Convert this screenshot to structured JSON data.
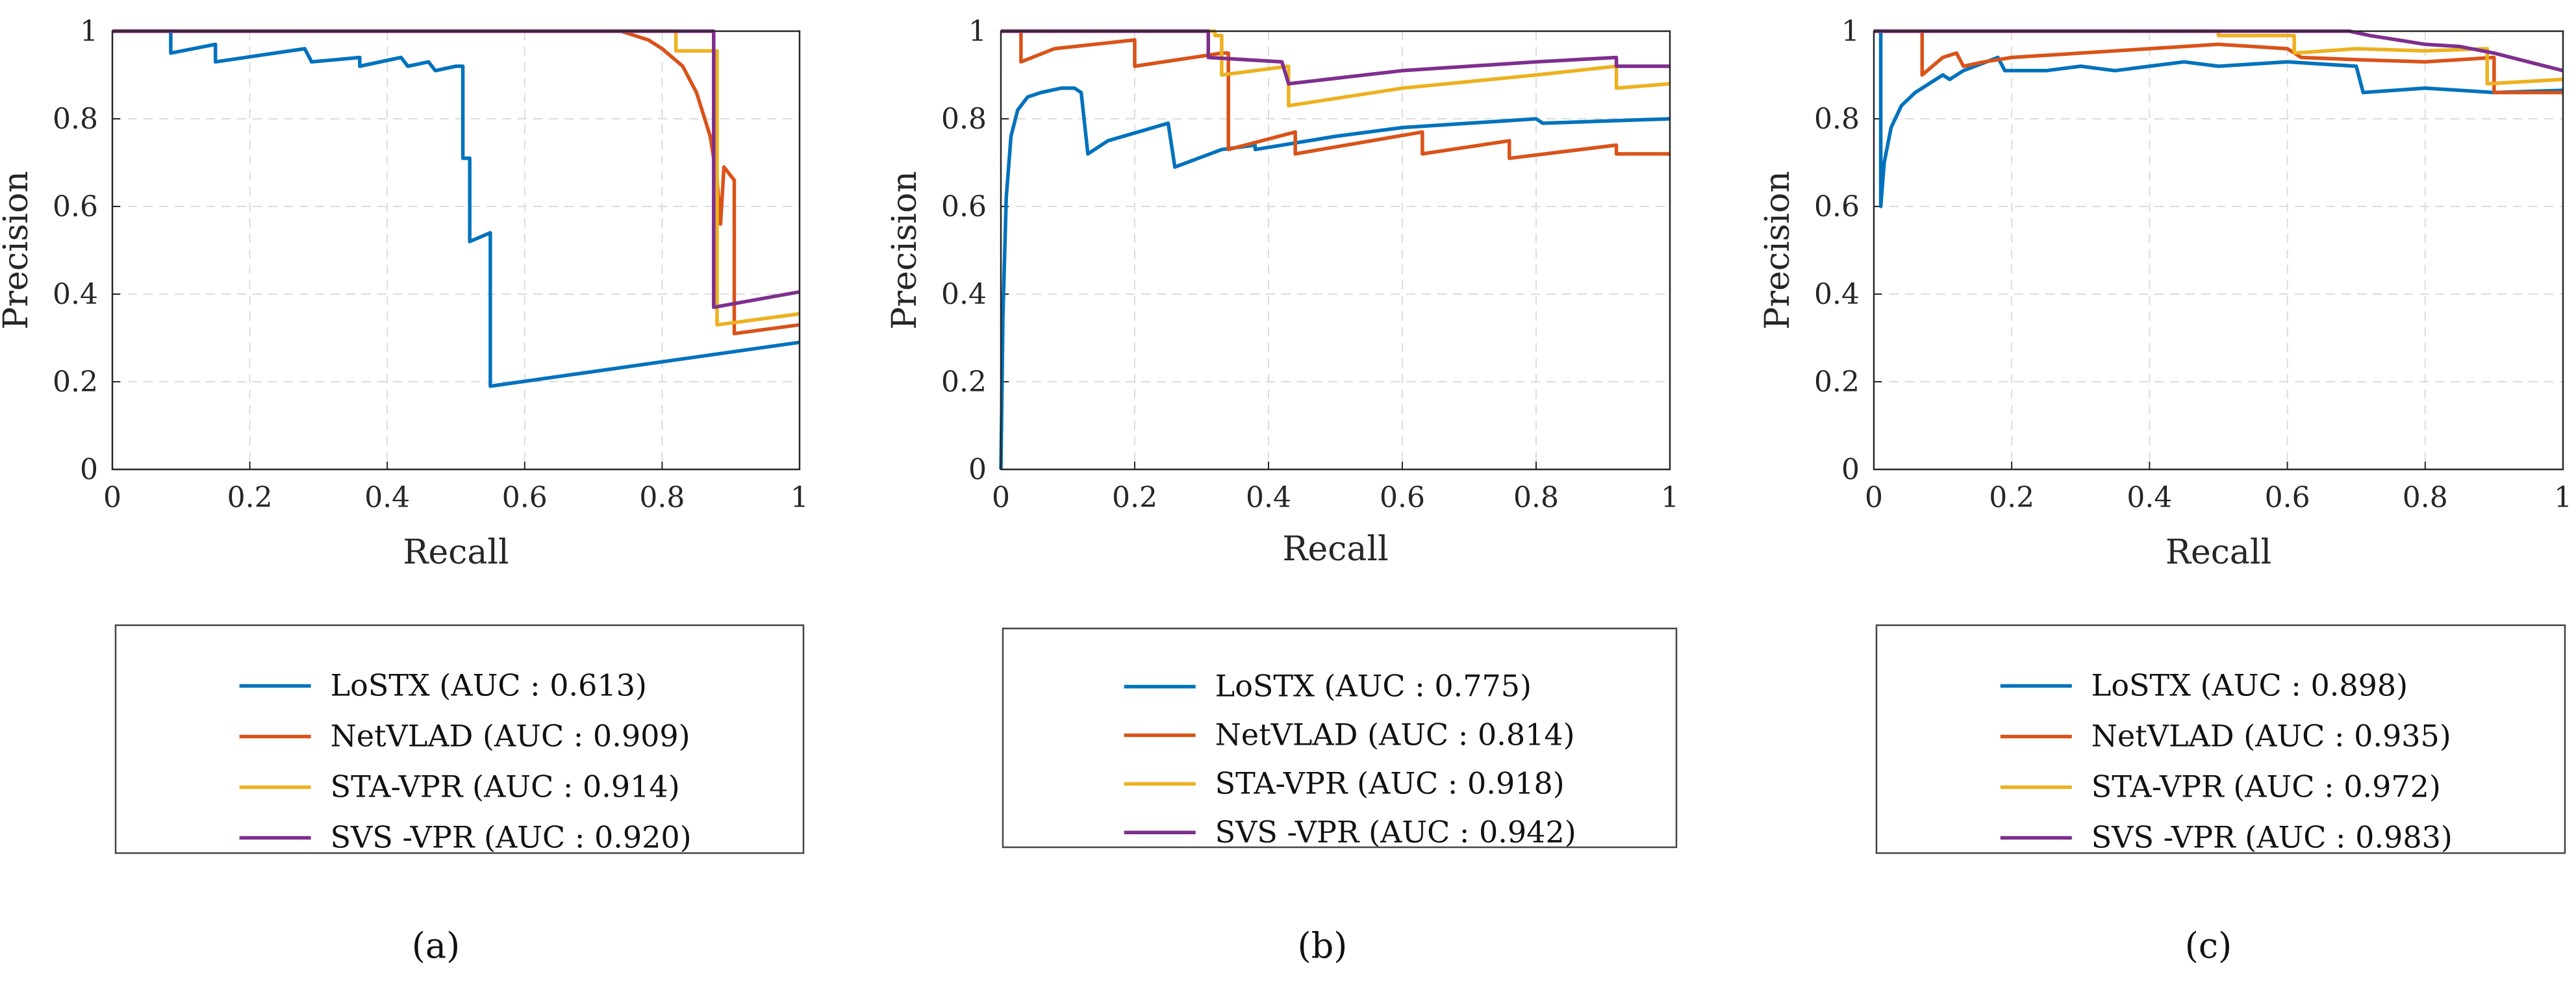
{
  "colors": {
    "LoSTX": "#0072BD",
    "NetVLAD": "#D95319",
    "STA-VPR": "#EDB120",
    "SVS-VPR": "#7E2F8E"
  },
  "chart_data": [
    {
      "type": "line",
      "caption": "(a)",
      "xlabel": "Recall",
      "ylabel": "Precision",
      "xlim": [
        0,
        1
      ],
      "ylim": [
        0,
        1
      ],
      "xticks": [
        "0",
        "0.2",
        "0.4",
        "0.6",
        "0.8",
        "1"
      ],
      "yticks": [
        "0",
        "0.2",
        "0.4",
        "0.6",
        "0.8",
        "1"
      ],
      "grid": true,
      "legend": {
        "placement": "below",
        "entries": [
          "LoSTX (AUC : 0.613)",
          "NetVLAD (AUC : 0.909)",
          "STA-VPR (AUC : 0.914)",
          "SVS -VPR (AUC : 0.920)"
        ]
      },
      "series": [
        {
          "key": "LoSTX",
          "points": [
            [
              0,
              1
            ],
            [
              0.085,
              1
            ],
            [
              0.085,
              0.95
            ],
            [
              0.15,
              0.97
            ],
            [
              0.15,
              0.93
            ],
            [
              0.28,
              0.96
            ],
            [
              0.29,
              0.93
            ],
            [
              0.36,
              0.94
            ],
            [
              0.36,
              0.92
            ],
            [
              0.42,
              0.94
            ],
            [
              0.43,
              0.92
            ],
            [
              0.46,
              0.93
            ],
            [
              0.47,
              0.91
            ],
            [
              0.5,
              0.92
            ],
            [
              0.51,
              0.92
            ],
            [
              0.51,
              0.71
            ],
            [
              0.52,
              0.71
            ],
            [
              0.52,
              0.52
            ],
            [
              0.55,
              0.54
            ],
            [
              0.55,
              0.19
            ],
            [
              1,
              0.29
            ]
          ]
        },
        {
          "key": "NetVLAD",
          "points": [
            [
              0,
              1
            ],
            [
              0.74,
              1
            ],
            [
              0.78,
              0.98
            ],
            [
              0.8,
              0.96
            ],
            [
              0.83,
              0.92
            ],
            [
              0.85,
              0.86
            ],
            [
              0.87,
              0.76
            ],
            [
              0.88,
              0.66
            ],
            [
              0.885,
              0.56
            ],
            [
              0.89,
              0.69
            ],
            [
              0.905,
              0.66
            ],
            [
              0.905,
              0.31
            ],
            [
              1,
              0.33
            ]
          ]
        },
        {
          "key": "STA-VPR",
          "points": [
            [
              0,
              1
            ],
            [
              0.82,
              1
            ],
            [
              0.82,
              0.955
            ],
            [
              0.88,
              0.955
            ],
            [
              0.88,
              0.33
            ],
            [
              1,
              0.355
            ]
          ]
        },
        {
          "key": "SVS-VPR",
          "points": [
            [
              0,
              1
            ],
            [
              0.875,
              1
            ],
            [
              0.875,
              0.37
            ],
            [
              1,
              0.405
            ]
          ]
        }
      ]
    },
    {
      "type": "line",
      "caption": "(b)",
      "xlabel": "Recall",
      "ylabel": "Precision",
      "xlim": [
        0,
        1
      ],
      "ylim": [
        0,
        1
      ],
      "xticks": [
        "0",
        "0.2",
        "0.4",
        "0.6",
        "0.8",
        "1"
      ],
      "yticks": [
        "0",
        "0.2",
        "0.4",
        "0.6",
        "0.8",
        "1"
      ],
      "grid": true,
      "legend": {
        "placement": "below",
        "entries": [
          "LoSTX (AUC : 0.775)",
          "NetVLAD (AUC : 0.814)",
          "STA-VPR (AUC : 0.918)",
          "SVS -VPR (AUC : 0.942)"
        ]
      },
      "series": [
        {
          "key": "LoSTX",
          "points": [
            [
              0,
              0
            ],
            [
              0.003,
              0.35
            ],
            [
              0.008,
              0.62
            ],
            [
              0.015,
              0.76
            ],
            [
              0.025,
              0.82
            ],
            [
              0.04,
              0.85
            ],
            [
              0.06,
              0.86
            ],
            [
              0.09,
              0.87
            ],
            [
              0.11,
              0.87
            ],
            [
              0.12,
              0.86
            ],
            [
              0.13,
              0.72
            ],
            [
              0.16,
              0.75
            ],
            [
              0.25,
              0.79
            ],
            [
              0.26,
              0.69
            ],
            [
              0.33,
              0.73
            ],
            [
              0.38,
              0.74
            ],
            [
              0.38,
              0.73
            ],
            [
              0.5,
              0.76
            ],
            [
              0.6,
              0.78
            ],
            [
              0.7,
              0.79
            ],
            [
              0.8,
              0.8
            ],
            [
              0.81,
              0.79
            ],
            [
              1,
              0.8
            ]
          ]
        },
        {
          "key": "NetVLAD",
          "points": [
            [
              0,
              1
            ],
            [
              0.03,
              1
            ],
            [
              0.03,
              0.93
            ],
            [
              0.08,
              0.96
            ],
            [
              0.2,
              0.98
            ],
            [
              0.2,
              0.92
            ],
            [
              0.33,
              0.95
            ],
            [
              0.34,
              0.95
            ],
            [
              0.34,
              0.73
            ],
            [
              0.44,
              0.77
            ],
            [
              0.44,
              0.72
            ],
            [
              0.63,
              0.77
            ],
            [
              0.63,
              0.72
            ],
            [
              0.76,
              0.75
            ],
            [
              0.76,
              0.71
            ],
            [
              0.92,
              0.74
            ],
            [
              0.92,
              0.72
            ],
            [
              1,
              0.72
            ]
          ]
        },
        {
          "key": "STA-VPR",
          "points": [
            [
              0,
              1
            ],
            [
              0.32,
              1
            ],
            [
              0.32,
              0.99
            ],
            [
              0.33,
              0.99
            ],
            [
              0.33,
              0.9
            ],
            [
              0.43,
              0.92
            ],
            [
              0.43,
              0.83
            ],
            [
              0.6,
              0.87
            ],
            [
              0.8,
              0.9
            ],
            [
              0.92,
              0.92
            ],
            [
              0.92,
              0.87
            ],
            [
              1,
              0.88
            ]
          ]
        },
        {
          "key": "SVS-VPR",
          "points": [
            [
              0,
              1
            ],
            [
              0.31,
              1
            ],
            [
              0.31,
              0.94
            ],
            [
              0.42,
              0.93
            ],
            [
              0.43,
              0.88
            ],
            [
              0.6,
              0.91
            ],
            [
              0.8,
              0.93
            ],
            [
              0.92,
              0.94
            ],
            [
              0.92,
              0.92
            ],
            [
              1,
              0.92
            ]
          ]
        }
      ]
    },
    {
      "type": "line",
      "caption": "(c)",
      "xlabel": "Recall",
      "ylabel": "Precision",
      "xlim": [
        0,
        1
      ],
      "ylim": [
        0,
        1
      ],
      "xticks": [
        "0",
        "0.2",
        "0.4",
        "0.6",
        "0.8",
        "1"
      ],
      "yticks": [
        "0",
        "0.2",
        "0.4",
        "0.6",
        "0.8",
        "1"
      ],
      "grid": true,
      "legend": {
        "placement": "below",
        "entries": [
          "LoSTX (AUC : 0.898)",
          "NetVLAD (AUC : 0.935)",
          "STA-VPR (AUC : 0.972)",
          "SVS -VPR (AUC : 0.983)"
        ]
      },
      "series": [
        {
          "key": "LoSTX",
          "points": [
            [
              0,
              1
            ],
            [
              0.01,
              1
            ],
            [
              0.01,
              0.6
            ],
            [
              0.015,
              0.7
            ],
            [
              0.025,
              0.78
            ],
            [
              0.04,
              0.83
            ],
            [
              0.06,
              0.86
            ],
            [
              0.08,
              0.88
            ],
            [
              0.1,
              0.9
            ],
            [
              0.11,
              0.89
            ],
            [
              0.13,
              0.91
            ],
            [
              0.18,
              0.94
            ],
            [
              0.19,
              0.91
            ],
            [
              0.25,
              0.91
            ],
            [
              0.3,
              0.92
            ],
            [
              0.35,
              0.91
            ],
            [
              0.4,
              0.92
            ],
            [
              0.45,
              0.93
            ],
            [
              0.5,
              0.92
            ],
            [
              0.6,
              0.93
            ],
            [
              0.7,
              0.92
            ],
            [
              0.71,
              0.86
            ],
            [
              0.8,
              0.87
            ],
            [
              0.9,
              0.86
            ],
            [
              1,
              0.865
            ]
          ]
        },
        {
          "key": "NetVLAD",
          "points": [
            [
              0,
              1
            ],
            [
              0.07,
              1
            ],
            [
              0.07,
              0.9
            ],
            [
              0.1,
              0.94
            ],
            [
              0.12,
              0.95
            ],
            [
              0.13,
              0.92
            ],
            [
              0.16,
              0.93
            ],
            [
              0.2,
              0.94
            ],
            [
              0.3,
              0.95
            ],
            [
              0.4,
              0.96
            ],
            [
              0.5,
              0.97
            ],
            [
              0.6,
              0.96
            ],
            [
              0.62,
              0.94
            ],
            [
              0.7,
              0.935
            ],
            [
              0.8,
              0.93
            ],
            [
              0.9,
              0.94
            ],
            [
              0.9,
              0.86
            ],
            [
              1,
              0.86
            ]
          ]
        },
        {
          "key": "STA-VPR",
          "points": [
            [
              0,
              1
            ],
            [
              0.5,
              1
            ],
            [
              0.5,
              0.99
            ],
            [
              0.61,
              0.99
            ],
            [
              0.61,
              0.95
            ],
            [
              0.7,
              0.96
            ],
            [
              0.8,
              0.955
            ],
            [
              0.89,
              0.96
            ],
            [
              0.89,
              0.88
            ],
            [
              1,
              0.89
            ]
          ]
        },
        {
          "key": "SVS-VPR",
          "points": [
            [
              0,
              1
            ],
            [
              0.69,
              1
            ],
            [
              0.72,
              0.99
            ],
            [
              0.76,
              0.98
            ],
            [
              0.8,
              0.97
            ],
            [
              0.85,
              0.965
            ],
            [
              0.9,
              0.95
            ],
            [
              0.95,
              0.93
            ],
            [
              1,
              0.91
            ]
          ]
        }
      ]
    }
  ]
}
